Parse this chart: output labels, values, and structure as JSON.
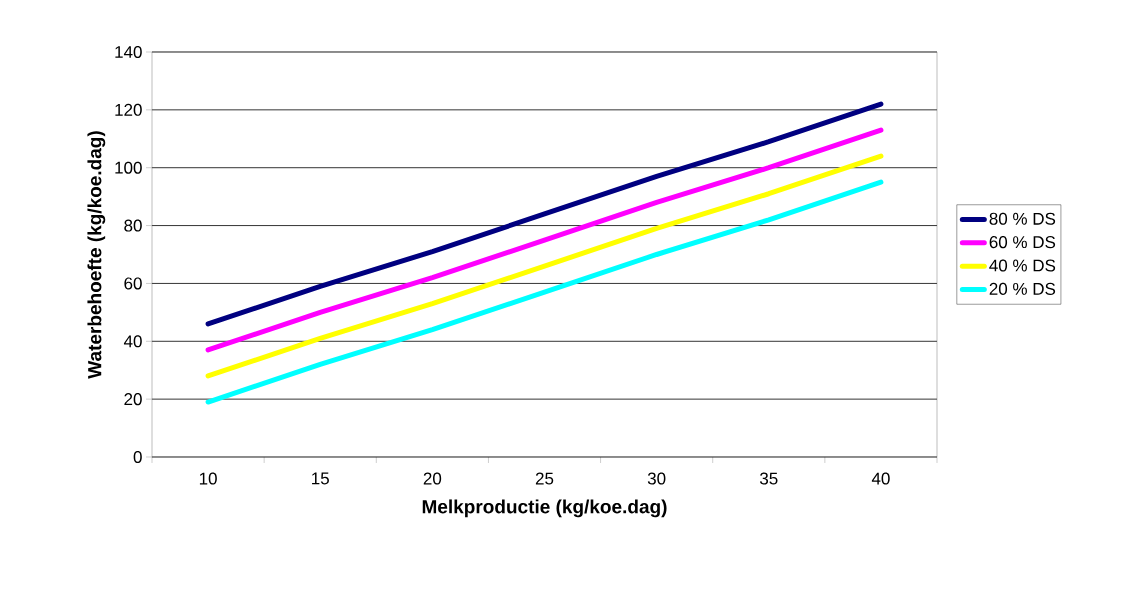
{
  "chart_data": {
    "type": "line",
    "xlabel": "Melkproductie (kg/koe.dag)",
    "ylabel": "Waterbehoefte (kg/koe.dag)",
    "categories": [
      "10",
      "15",
      "20",
      "25",
      "30",
      "35",
      "40"
    ],
    "series": [
      {
        "name": "80 % DS",
        "color": "#000080",
        "values": [
          46,
          59,
          71,
          84,
          97,
          109,
          122
        ]
      },
      {
        "name": "60 % DS",
        "color": "#ff00ff",
        "values": [
          37,
          50,
          62,
          75,
          88,
          100,
          113
        ]
      },
      {
        "name": "40 % DS",
        "color": "#ffff00",
        "values": [
          28,
          41,
          53,
          66,
          79,
          91,
          104
        ]
      },
      {
        "name": "20 % DS",
        "color": "#00ffff",
        "values": [
          19,
          32,
          44,
          57,
          70,
          82,
          95
        ]
      }
    ],
    "ylim": [
      0,
      140
    ],
    "yticks": [
      0,
      20,
      40,
      60,
      80,
      100,
      120,
      140
    ],
    "grid": "y",
    "legend": "right",
    "marker": "none",
    "line_style": "solid"
  }
}
